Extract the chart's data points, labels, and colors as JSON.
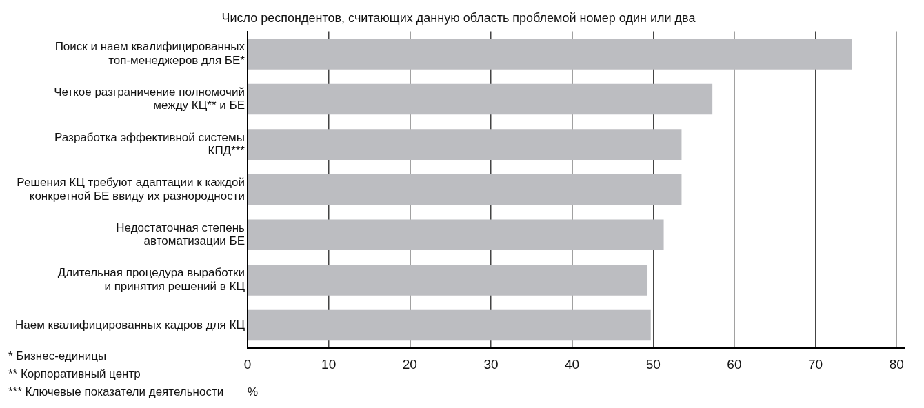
{
  "chart_data": {
    "type": "bar",
    "orientation": "horizontal",
    "title": "Число респондентов, считающих данную область проблемой номер один или два",
    "xlabel": "%",
    "categories": [
      "Поиск и наем квалифицированных\nтоп-менеджеров для БЕ*",
      "Четкое разграничение полномочий\nмежду КЦ** и БЕ",
      "Разработка эффективной системы\nКПД***",
      "Решения КЦ требуют адаптации к каждой\nконкретной БЕ ввиду их разнородности",
      "Недостаточная степень\nавтоматизации БЕ",
      "Длительная процедура выработки\nи принятия решений в КЦ",
      "Наем квалифицированных кадров для КЦ"
    ],
    "values": [
      74.5,
      57.3,
      53.5,
      53.5,
      51.3,
      49.3,
      49.7
    ],
    "color": "#bcbdc1",
    "xlim": [
      0,
      81
    ],
    "xticks": [
      0,
      10,
      20,
      30,
      40,
      50,
      60,
      70,
      80
    ],
    "grid": "x",
    "legend": false,
    "annotations": [
      "* Бизнес-единицы",
      "** Корпоративный центр",
      "*** Ключевые показатели деятельности"
    ]
  }
}
